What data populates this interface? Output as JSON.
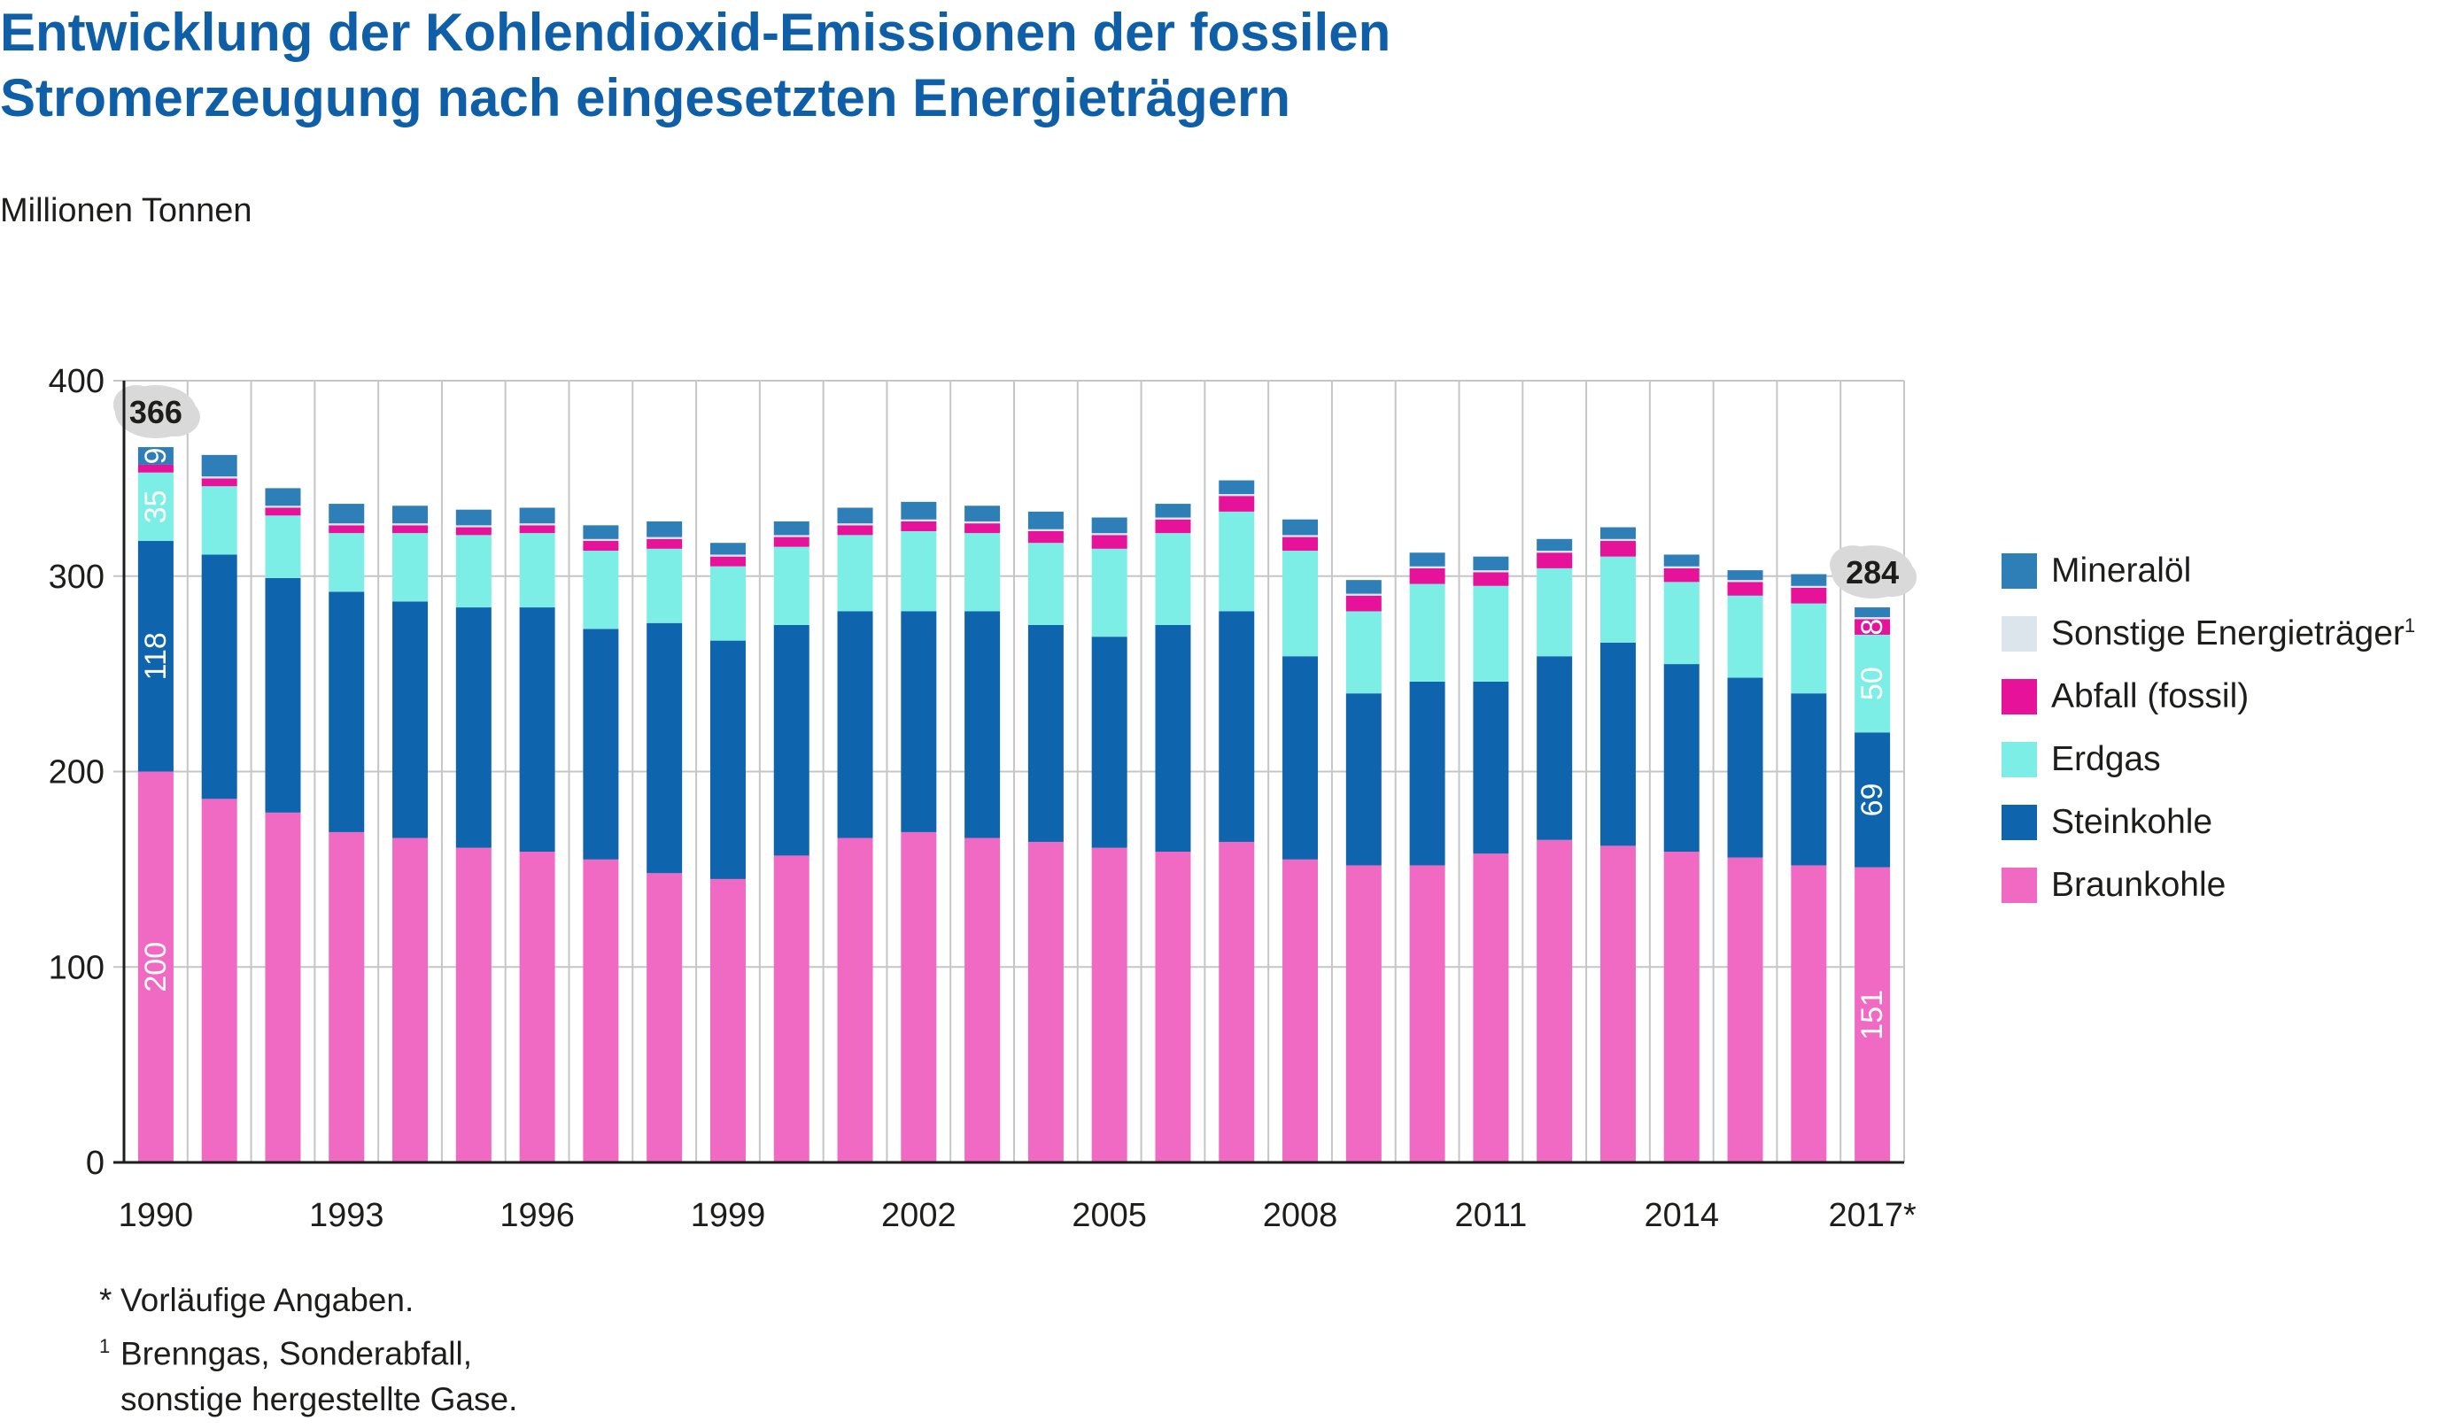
{
  "title": {
    "line1": "Entwicklung der Kohlendioxid-Emissionen der fossilen",
    "line2": "Stromerzeugung nach eingesetzten Energieträgern"
  },
  "unit_label": "Millionen Tonnen",
  "colors": {
    "Braunkohle": "#f06ac3",
    "Steinkohle": "#0f65ad",
    "Erdgas": "#7deee6",
    "Abfall (fossil)": "#e6139a",
    "Sonstige Energieträger": "#dde5ec",
    "Mineralöl": "#2e7eb8",
    "title": "#0e5ea8",
    "gridline": "#c6c6c6",
    "axis": "#1d1d1b",
    "callout_bubble": "#d9d9d9"
  },
  "chart_data": {
    "type": "bar",
    "stacked": true,
    "ylim": [
      0,
      400
    ],
    "yticks": [
      0,
      100,
      200,
      300,
      400
    ],
    "grid": true,
    "legend_position": "right",
    "categories": [
      "1990",
      "1991",
      "1992",
      "1993",
      "1994",
      "1995",
      "1996",
      "1997",
      "1998",
      "1999",
      "2000",
      "2001",
      "2002",
      "2003",
      "2004",
      "2005",
      "2006",
      "2007",
      "2008",
      "2009",
      "2010",
      "2011",
      "2012",
      "2013",
      "2014",
      "2015",
      "2016",
      "2017*"
    ],
    "x_tick_labels": [
      "1990",
      "",
      "",
      "1993",
      "",
      "",
      "1996",
      "",
      "",
      "1999",
      "",
      "",
      "2002",
      "",
      "",
      "2005",
      "",
      "",
      "2008",
      "",
      "",
      "2011",
      "",
      "",
      "2014",
      "",
      "",
      "2017*"
    ],
    "series": [
      {
        "name": "Braunkohle",
        "values": [
          200,
          186,
          179,
          169,
          166,
          161,
          159,
          155,
          148,
          145,
          157,
          166,
          169,
          166,
          164,
          161,
          159,
          164,
          155,
          152,
          152,
          158,
          165,
          162,
          159,
          156,
          152,
          151
        ]
      },
      {
        "name": "Steinkohle",
        "values": [
          118,
          125,
          120,
          123,
          121,
          123,
          125,
          118,
          128,
          122,
          118,
          116,
          113,
          116,
          111,
          108,
          116,
          118,
          104,
          88,
          94,
          88,
          94,
          104,
          96,
          92,
          88,
          69
        ]
      },
      {
        "name": "Erdgas",
        "values": [
          35,
          35,
          32,
          30,
          35,
          37,
          38,
          40,
          38,
          38,
          40,
          39,
          41,
          40,
          42,
          45,
          47,
          51,
          54,
          42,
          50,
          49,
          45,
          44,
          42,
          42,
          46,
          50
        ]
      },
      {
        "name": "Abfall (fossil)",
        "values": [
          4,
          4,
          4,
          4,
          4,
          4,
          4,
          5,
          5,
          5,
          5,
          5,
          5,
          5,
          6,
          7,
          7,
          8,
          7,
          8,
          8,
          7,
          8,
          8,
          7,
          7,
          8,
          8
        ]
      },
      {
        "name": "Sonstige Energieträger",
        "values": [
          0,
          1,
          1,
          1,
          1,
          1,
          1,
          1,
          1,
          1,
          1,
          1,
          1,
          1,
          1,
          1,
          1,
          1,
          1,
          1,
          1,
          1,
          1,
          1,
          1,
          1,
          1,
          1
        ]
      },
      {
        "name": "Mineralöl",
        "values": [
          9,
          11,
          9,
          10,
          9,
          8,
          8,
          7,
          8,
          6,
          7,
          8,
          9,
          8,
          9,
          8,
          7,
          7,
          8,
          7,
          7,
          7,
          6,
          6,
          6,
          5,
          6,
          5
        ]
      }
    ],
    "data_labels": [
      {
        "category": "1990",
        "series": "Braunkohle",
        "text": "200"
      },
      {
        "category": "1990",
        "series": "Steinkohle",
        "text": "118"
      },
      {
        "category": "1990",
        "series": "Erdgas",
        "text": "35"
      },
      {
        "category": "1990",
        "series": "Mineralöl",
        "text": "9"
      },
      {
        "category": "2017*",
        "series": "Braunkohle",
        "text": "151"
      },
      {
        "category": "2017*",
        "series": "Steinkohle",
        "text": "69"
      },
      {
        "category": "2017*",
        "series": "Erdgas",
        "text": "50"
      },
      {
        "category": "2017*",
        "series": "Abfall (fossil)",
        "text": "8"
      }
    ],
    "totals": [
      {
        "category": "1990",
        "text": "366"
      },
      {
        "category": "2017*",
        "text": "284"
      }
    ]
  },
  "legend": [
    {
      "key": "Mineralöl",
      "label": "Mineralöl",
      "sup": ""
    },
    {
      "key": "Sonstige Energieträger",
      "label": "Sonstige Energieträger",
      "sup": "1"
    },
    {
      "key": "Abfall (fossil)",
      "label": "Abfall (fossil)",
      "sup": ""
    },
    {
      "key": "Erdgas",
      "label": "Erdgas",
      "sup": ""
    },
    {
      "key": "Steinkohle",
      "label": "Steinkohle",
      "sup": ""
    },
    {
      "key": "Braunkohle",
      "label": "Braunkohle",
      "sup": ""
    }
  ],
  "footnotes": {
    "note1_mark": "*",
    "note1_text": "Vorläufige Angaben.",
    "note2_mark": "1",
    "note2_line1": "Brenngas, Sonderabfall,",
    "note2_line2": "sonstige hergestellte Gase."
  }
}
